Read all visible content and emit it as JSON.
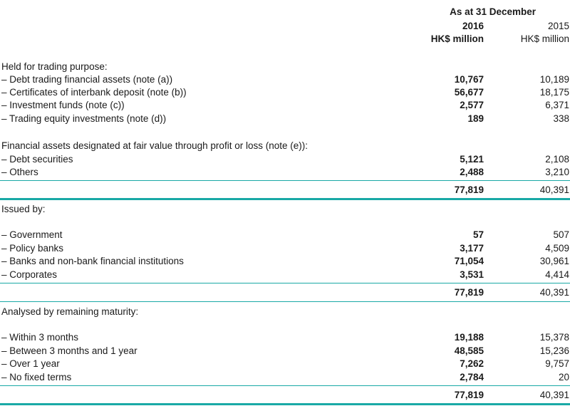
{
  "header": {
    "as_at": "As at 31 December",
    "year_current": "2016",
    "year_prior": "2015",
    "unit_current": "HK$ million",
    "unit_prior": "HK$ million"
  },
  "sections": [
    {
      "heading": "Held for trading purpose:",
      "rows": [
        {
          "label": "– Debt trading financial assets (note (a))",
          "v2016": "10,767",
          "v2015": "10,189"
        },
        {
          "label": "– Certificates of interbank deposit (note (b))",
          "v2016": "56,677",
          "v2015": "18,175"
        },
        {
          "label": "– Investment funds (note (c))",
          "v2016": "2,577",
          "v2015": "6,371"
        },
        {
          "label": "– Trading equity investments (note (d))",
          "v2016": "189",
          "v2015": "338"
        }
      ]
    },
    {
      "heading": "Financial assets designated at fair value through profit or loss (note (e)):",
      "rows": [
        {
          "label": "– Debt securities",
          "v2016": "5,121",
          "v2015": "2,108"
        },
        {
          "label": "– Others",
          "v2016": "2,488",
          "v2015": "3,210"
        }
      ],
      "total": {
        "v2016": "77,819",
        "v2015": "40,391"
      }
    },
    {
      "heading": "Issued by:",
      "rows": [
        {
          "label": "– Government",
          "v2016": "57",
          "v2015": "507"
        },
        {
          "label": "– Policy banks",
          "v2016": "3,177",
          "v2015": "4,509"
        },
        {
          "label": "– Banks and non-bank financial institutions",
          "v2016": "71,054",
          "v2015": "30,961"
        },
        {
          "label": "– Corporates",
          "v2016": "3,531",
          "v2015": "4,414"
        }
      ],
      "total": {
        "v2016": "77,819",
        "v2015": "40,391"
      }
    },
    {
      "heading": "Analysed by remaining maturity:",
      "rows": [
        {
          "label": "– Within 3 months",
          "v2016": "19,188",
          "v2015": "15,378"
        },
        {
          "label": "– Between 3 months and 1 year",
          "v2016": "48,585",
          "v2015": "15,236"
        },
        {
          "label": "– Over 1 year",
          "v2016": "7,262",
          "v2015": "9,757"
        },
        {
          "label": "– No fixed terms",
          "v2016": "2,784",
          "v2015": "20"
        }
      ],
      "total": {
        "v2016": "77,819",
        "v2015": "40,391"
      }
    }
  ]
}
